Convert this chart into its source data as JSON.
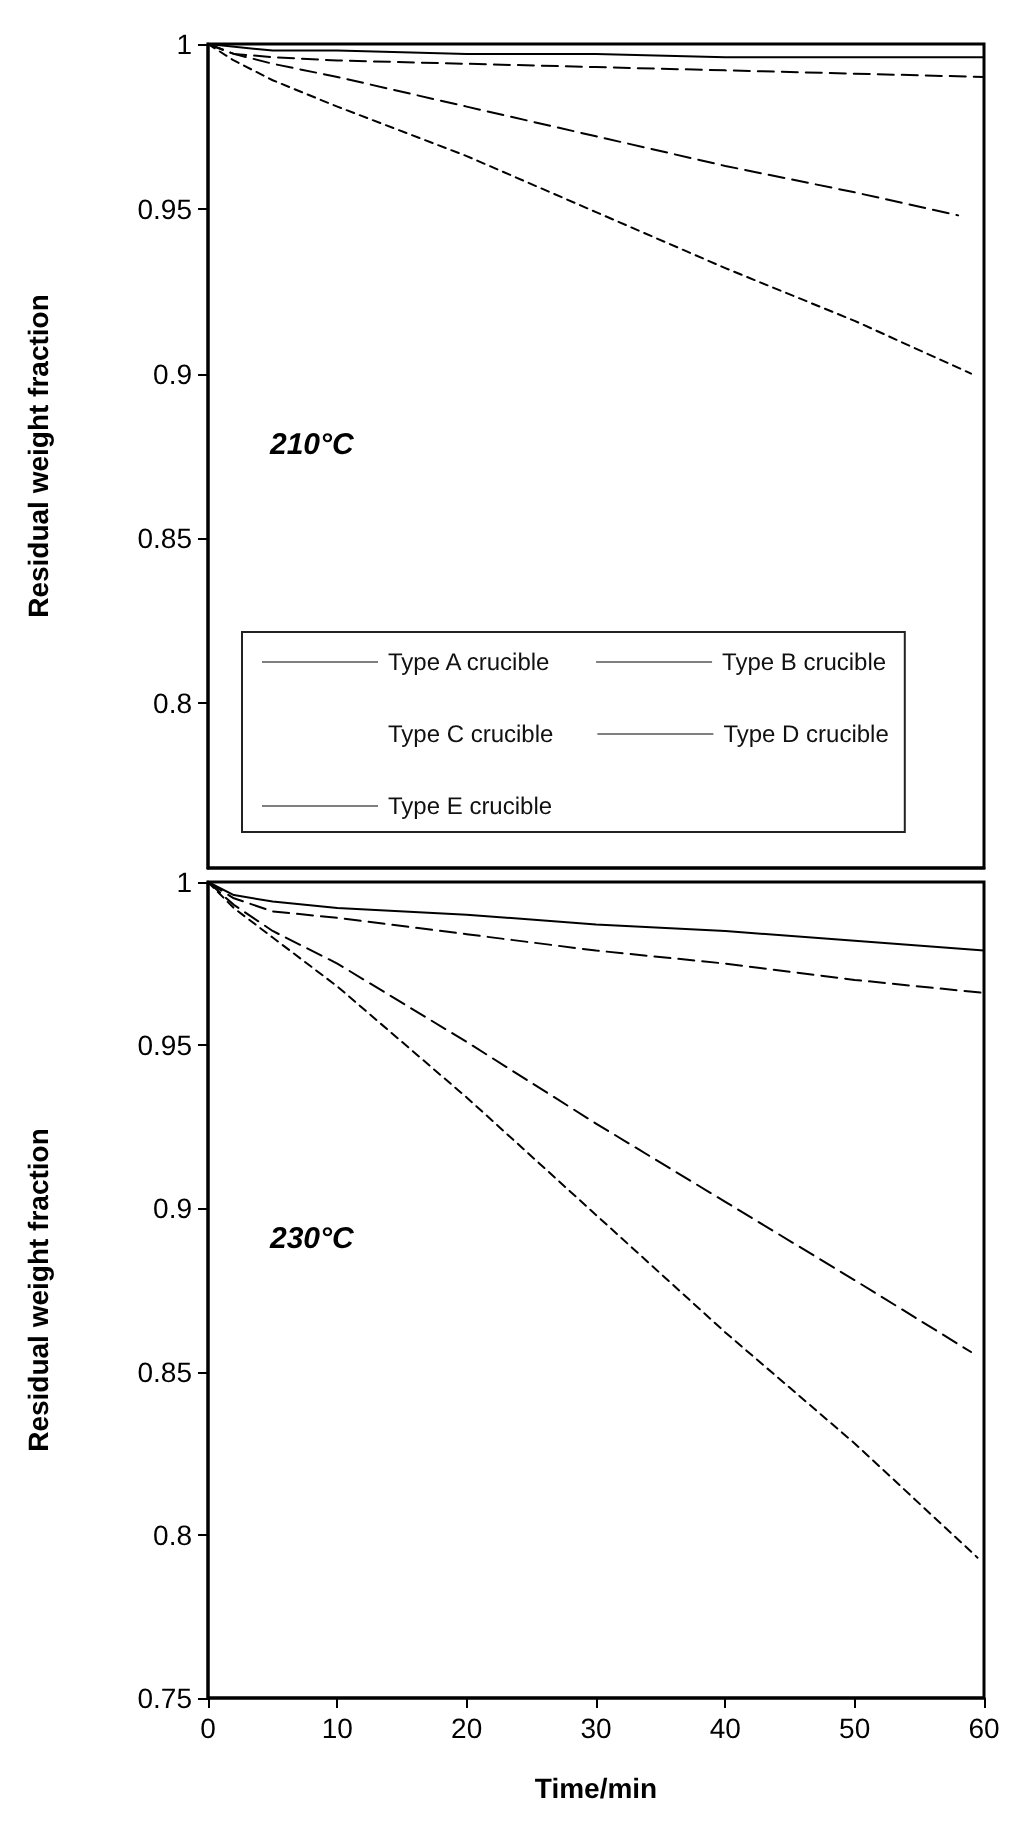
{
  "chart_data": [
    {
      "type": "line",
      "ylabel": "Residual weight fraction",
      "annotations": [
        "210°C"
      ],
      "xlim": [
        0,
        60
      ],
      "xticks": [
        0,
        10,
        20,
        30,
        40,
        50,
        60
      ],
      "ylim": [
        0.75,
        1
      ],
      "yticks": [
        0.8,
        0.85,
        0.9,
        0.95,
        1
      ],
      "tick_labels": "y",
      "grid": false,
      "legend": "bottom",
      "marker": "none",
      "series": [
        {
          "name": "Type A crucible",
          "color": "#000000",
          "line_style": "dotted",
          "x": [
            0,
            2,
            5,
            10,
            20,
            30,
            40,
            50,
            59
          ],
          "values": [
            1,
            0.995,
            0.989,
            0.981,
            0.966,
            0.949,
            0.932,
            0.916,
            0.9
          ]
        },
        {
          "name": "Type B crucible",
          "color": "#000000",
          "line_style": "dashed",
          "x": [
            0,
            2,
            5,
            10,
            20,
            30,
            40,
            50,
            60
          ],
          "values": [
            1,
            0.997,
            0.996,
            0.995,
            0.994,
            0.993,
            0.992,
            0.991,
            0.99
          ]
        },
        {
          "name": "Type C crucible"
        },
        {
          "name": "Type D crucible",
          "color": "#000000",
          "line_style": "dashed",
          "x": [
            0,
            2,
            5,
            10,
            20,
            30,
            40,
            50,
            58
          ],
          "values": [
            1,
            0.997,
            0.994,
            0.99,
            0.981,
            0.972,
            0.963,
            0.955,
            0.948
          ]
        },
        {
          "name": "Type E crucible",
          "color": "#000000",
          "line_style": "solid",
          "x": [
            0,
            5,
            10,
            20,
            30,
            40,
            50,
            60
          ],
          "values": [
            1,
            0.998,
            0.998,
            0.997,
            0.997,
            0.996,
            0.996,
            0.996
          ]
        }
      ]
    },
    {
      "type": "line",
      "xlabel": "Time/min",
      "ylabel": "Residual weight fraction",
      "annotations": [
        "230°C"
      ],
      "xlim": [
        0,
        60
      ],
      "xticks": [
        0,
        10,
        20,
        30,
        40,
        50,
        60
      ],
      "ylim": [
        0.75,
        1
      ],
      "yticks": [
        0.75,
        0.8,
        0.85,
        0.9,
        0.95,
        1
      ],
      "grid": false,
      "legend": false,
      "marker": "none",
      "series": [
        {
          "color": "#000000",
          "line_style": "dotted",
          "x": [
            0,
            2,
            5,
            10,
            20,
            30,
            40,
            50,
            59.5
          ],
          "values": [
            1,
            0.992,
            0.983,
            0.968,
            0.934,
            0.898,
            0.862,
            0.828,
            0.793
          ]
        },
        {
          "color": "#000000",
          "line_style": "dashed",
          "x": [
            0,
            2,
            5,
            10,
            20,
            30,
            40,
            50,
            60
          ],
          "values": [
            1,
            0.995,
            0.991,
            0.989,
            0.984,
            0.979,
            0.975,
            0.97,
            0.966
          ]
        },
        {
          "color": "#000000",
          "line_style": "dashed",
          "x": [
            0,
            2,
            5,
            10,
            20,
            30,
            40,
            50,
            59
          ],
          "values": [
            1,
            0.993,
            0.985,
            0.975,
            0.951,
            0.926,
            0.902,
            0.878,
            0.856
          ]
        },
        {
          "color": "#000000",
          "line_style": "solid",
          "x": [
            0,
            2,
            5,
            10,
            20,
            30,
            40,
            50,
            60
          ],
          "values": [
            1,
            0.996,
            0.994,
            0.992,
            0.99,
            0.987,
            0.985,
            0.982,
            0.979
          ]
        }
      ]
    }
  ]
}
